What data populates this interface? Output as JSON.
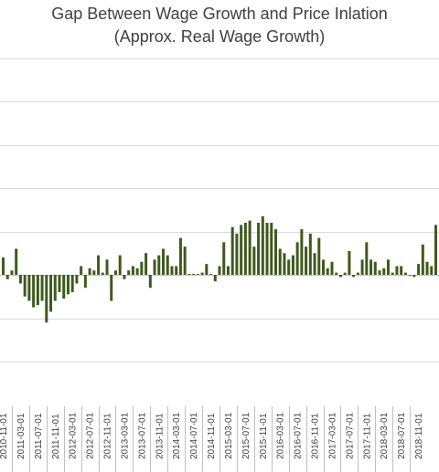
{
  "chart_data": {
    "type": "bar",
    "title": "Gap Between Wage Growth and Price Inlation",
    "subtitle": "(Approx. Real Wage Growth)",
    "xlabel": "",
    "ylabel": "",
    "grid": true,
    "legend": "none",
    "ylim": [
      -2.5,
      5
    ],
    "gridlines": [
      -2,
      -1,
      0,
      1,
      2,
      3,
      4,
      5
    ],
    "bar_color": "#3f5a1e",
    "start": "2010-11-01",
    "tick_every_months": 4,
    "tick_labels": [
      "2010-11-01",
      "2011-03-01",
      "2011-07-01",
      "2011-11-01",
      "2012-03-01",
      "2012-07-01",
      "2012-11-01",
      "2013-03-01",
      "2013-07-01",
      "2013-11-01",
      "2014-03-01",
      "2014-07-01",
      "2014-11-01",
      "2015-03-01",
      "2015-07-01",
      "2015-11-01",
      "2016-03-01",
      "2016-07-01",
      "2016-11-01",
      "2017-03-01",
      "2017-07-01",
      "2017-11-01",
      "2018-03-01",
      "2018-07-01",
      "2018-11-01"
    ],
    "values": [
      0.4,
      -0.1,
      0.1,
      0.6,
      -0.2,
      -0.5,
      -0.6,
      -0.75,
      -0.7,
      -0.6,
      -1.1,
      -0.85,
      -0.6,
      -0.4,
      -0.55,
      -0.45,
      -0.4,
      -0.2,
      0.2,
      -0.3,
      0.15,
      0.1,
      0.45,
      0.05,
      0.35,
      -0.6,
      0.1,
      0.45,
      -0.1,
      0.1,
      0.2,
      0.15,
      0.3,
      0.5,
      -0.3,
      0.35,
      0.45,
      0.6,
      0.45,
      0.2,
      0.2,
      0.85,
      0.65,
      0.02,
      0.02,
      0.02,
      0.05,
      0.25,
      0.02,
      -0.15,
      0.2,
      0.75,
      0.2,
      1.1,
      0.95,
      1.15,
      1.2,
      1.25,
      0.65,
      1.2,
      1.35,
      1.2,
      1.2,
      1.05,
      0.6,
      0.5,
      0.35,
      0.45,
      0.75,
      1.05,
      0.65,
      0.95,
      0.5,
      0.85,
      0.35,
      0.15,
      0.3,
      0.05,
      -0.05,
      0.05,
      0.55,
      -0.05,
      0.05,
      0.35,
      0.75,
      0.35,
      0.3,
      0.1,
      0.15,
      0.35,
      0.05,
      0.2,
      0.2,
      0.05,
      0.0,
      -0.05,
      0.25,
      0.7,
      0.3,
      0.2,
      1.15
    ]
  }
}
